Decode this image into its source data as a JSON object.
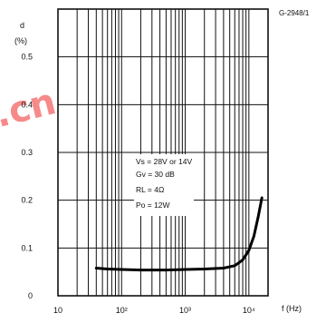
{
  "figure_code": "G-2948/1",
  "watermark": ".cn",
  "chart_data": {
    "type": "line",
    "xscale": "log",
    "xlim": [
      10,
      20000
    ],
    "ylim": [
      0,
      0.6
    ],
    "ylabel_lines": [
      "d",
      "(%)"
    ],
    "xlabel": "f  (Hz)",
    "x_tick_labels": [
      {
        "value": 10,
        "label": "10"
      },
      {
        "value": 100,
        "label": "10²"
      },
      {
        "value": 1000,
        "label": "10³"
      },
      {
        "value": 10000,
        "label": "10⁴"
      }
    ],
    "y_tick_labels": [
      {
        "value": 0,
        "label": "0"
      },
      {
        "value": 0.1,
        "label": "0.1"
      },
      {
        "value": 0.2,
        "label": "0.2"
      },
      {
        "value": 0.3,
        "label": "0.3"
      },
      {
        "value": 0.4,
        "label": "0.4"
      },
      {
        "value": 0.5,
        "label": "0.5"
      }
    ],
    "grid": true,
    "conditions": [
      "Vs = 28V or 14V",
      "Gv = 30 dB",
      "RL = 4Ω",
      "Po = 12W"
    ],
    "series": [
      {
        "points": [
          [
            40,
            0.058
          ],
          [
            60,
            0.056
          ],
          [
            100,
            0.055
          ],
          [
            200,
            0.054
          ],
          [
            500,
            0.054
          ],
          [
            1000,
            0.055
          ],
          [
            2000,
            0.056
          ],
          [
            4000,
            0.058
          ],
          [
            6000,
            0.063
          ],
          [
            8000,
            0.075
          ],
          [
            10000,
            0.095
          ],
          [
            12000,
            0.125
          ],
          [
            14000,
            0.165
          ],
          [
            16000,
            0.205
          ]
        ]
      }
    ]
  }
}
